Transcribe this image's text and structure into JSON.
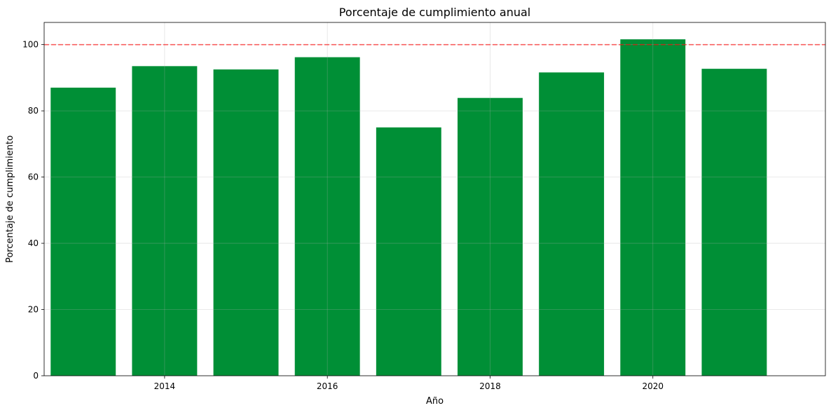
{
  "chart_data": {
    "type": "bar",
    "title": "Porcentaje de cumplimiento anual",
    "xlabel": "Año",
    "ylabel": "Porcentaje de cumplimiento",
    "categories": [
      2013,
      2014,
      2015,
      2016,
      2017,
      2018,
      2019,
      2020,
      2021
    ],
    "values": [
      87.0,
      93.5,
      92.5,
      96.2,
      75.0,
      83.9,
      91.6,
      101.6,
      92.7
    ],
    "xlim": [
      2012.52,
      2022.12
    ],
    "ylim": [
      0,
      106.7
    ],
    "xticks": [
      2014,
      2016,
      2018,
      2020
    ],
    "yticks": [
      0,
      20,
      40,
      60,
      80,
      100
    ],
    "reference_line": {
      "y": 100,
      "color": "#ff0000",
      "style": "dashed"
    },
    "bar_color": "#008f36",
    "grid": true
  }
}
